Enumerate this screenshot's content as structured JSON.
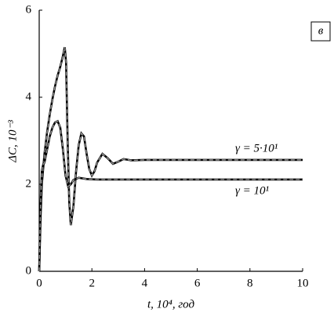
{
  "chart_data": {
    "type": "line",
    "panel_label": "в",
    "x_label": "t, 10⁴, год",
    "y_label": "ΔC, 10⁻³",
    "xlim": [
      0,
      10
    ],
    "xticks": [
      0,
      2,
      4,
      6,
      8,
      10
    ],
    "ylim": [
      0,
      6
    ],
    "yticks": [
      0,
      2,
      4,
      6
    ],
    "grid": false,
    "series": [
      {
        "name": "γ = 5·10¹",
        "color": "#000000",
        "x": [
          0,
          0.05,
          0.1,
          0.2,
          0.3,
          0.4,
          0.5,
          0.6,
          0.7,
          0.8,
          0.9,
          0.97,
          1.02,
          1.08,
          1.14,
          1.2,
          1.3,
          1.4,
          1.5,
          1.6,
          1.7,
          1.8,
          1.9,
          2.0,
          2.1,
          2.2,
          2.4,
          2.6,
          2.8,
          3.0,
          3.2,
          3.5,
          4,
          10
        ],
        "values": [
          0,
          1.2,
          2.0,
          2.7,
          3.2,
          3.6,
          3.95,
          4.25,
          4.5,
          4.7,
          4.95,
          5.15,
          4.8,
          3.0,
          1.6,
          1.06,
          1.5,
          2.3,
          2.9,
          3.17,
          3.1,
          2.7,
          2.35,
          2.2,
          2.3,
          2.5,
          2.7,
          2.6,
          2.47,
          2.52,
          2.58,
          2.55,
          2.56,
          2.56
        ]
      },
      {
        "name": "γ = 10¹",
        "color": "#000000",
        "x": [
          0,
          0.05,
          0.1,
          0.15,
          0.2,
          0.3,
          0.4,
          0.5,
          0.6,
          0.7,
          0.8,
          0.9,
          1.0,
          1.1,
          1.2,
          1.3,
          1.5,
          1.8,
          2.2,
          10
        ],
        "values": [
          0,
          1.5,
          2.3,
          2.45,
          2.5,
          2.8,
          3.1,
          3.3,
          3.42,
          3.45,
          3.3,
          2.8,
          2.2,
          1.95,
          2.0,
          2.1,
          2.15,
          2.12,
          2.11,
          2.11
        ]
      }
    ]
  }
}
